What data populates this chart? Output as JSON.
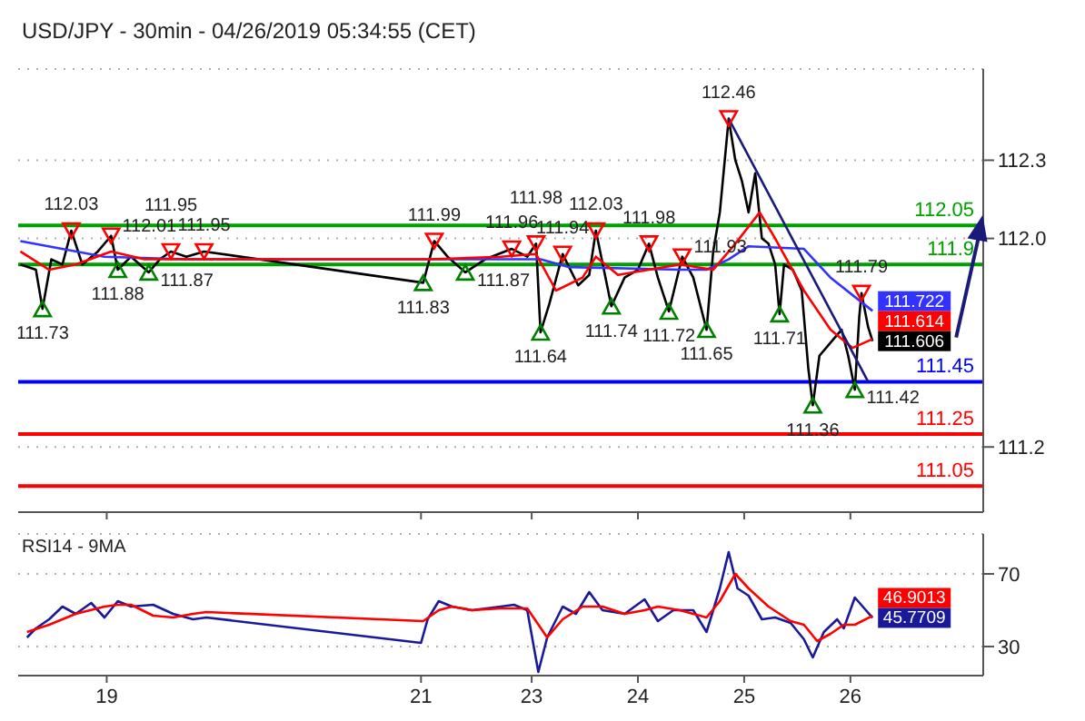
{
  "chart_data": [
    {
      "type": "line",
      "title": "USD/JPY - 30min - 04/26/2019 05:34:55 (CET)",
      "xlim": [
        "2019-04-18T04:00",
        "2019-04-27T06:00"
      ],
      "xticks": [
        "2019-04-19",
        "2019-04-21T23:00",
        "2019-04-23",
        "2019-04-24",
        "2019-04-25",
        "2019-04-26"
      ],
      "ylim": [
        110.95,
        112.65
      ],
      "yticks": [
        111.2,
        {
          "value": 112,
          "label": "112.0"
        },
        112.3
      ],
      "tick_labels": "y",
      "grid": "y",
      "marker": "none",
      "line_style": "solid",
      "ref_lines": [
        {
          "axis": "y",
          "value": 112.05,
          "label": "112.05",
          "color": "#00a000"
        },
        {
          "axis": "y",
          "value": 111.9,
          "label": "111.9",
          "color": "#00a000"
        },
        {
          "axis": "y",
          "value": 111.45,
          "label": "111.45",
          "color": "#0000ff"
        },
        {
          "axis": "y",
          "value": 111.25,
          "label": "111.25",
          "color": "#ff0000"
        },
        {
          "axis": "y",
          "value": 111.05,
          "label": "111.05",
          "color": "#ff0000"
        }
      ],
      "series": [
        {
          "color": "#000000",
          "x": [
            "2019-04-18T04:30",
            "2019-04-18T08:00",
            "2019-04-18T09:30",
            "2019-04-18T11:30",
            "2019-04-18T14:00",
            "2019-04-18T16:00",
            "2019-04-18T18:30",
            "2019-04-18T22:00",
            "2019-04-19T01:00",
            "2019-04-19T02:30",
            "2019-04-19T05:30",
            "2019-04-19T09:30",
            "2019-04-19T12:00",
            "2019-04-19T14:30",
            "2019-04-19T18:00",
            "2019-04-19T22:00",
            "2019-04-21T23:30",
            "2019-04-22T02:00",
            "2019-04-22T05:00",
            "2019-04-22T09:00",
            "2019-04-22T13:30",
            "2019-04-22T19:30",
            "2019-04-22T23:00",
            "2019-04-23T01:00",
            "2019-04-23T02:00",
            "2019-04-23T04:00",
            "2019-04-23T07:00",
            "2019-04-23T10:30",
            "2019-04-23T13:00",
            "2019-04-23T14:30",
            "2019-04-23T18:00",
            "2019-04-23T21:00",
            "2019-04-24T00:00",
            "2019-04-24T02:30",
            "2019-04-24T04:30",
            "2019-04-24T07:00",
            "2019-04-24T10:00",
            "2019-04-24T12:30",
            "2019-04-24T15:30",
            "2019-04-24T17:00",
            "2019-04-24T18:30",
            "2019-04-24T20:30",
            "2019-04-24T22:00",
            "2019-04-24T23:30",
            "2019-04-25T01:00",
            "2019-04-25T02:30",
            "2019-04-25T04:00",
            "2019-04-25T05:30",
            "2019-04-25T07:00",
            "2019-04-25T08:00",
            "2019-04-25T09:00",
            "2019-04-25T11:00",
            "2019-04-25T13:00",
            "2019-04-25T14:30",
            "2019-04-25T15:30",
            "2019-04-25T17:00",
            "2019-04-25T19:30",
            "2019-04-25T22:00",
            "2019-04-25T23:30",
            "2019-04-26T01:00",
            "2019-04-26T02:00",
            "2019-04-26T02:30",
            "2019-04-26T04:00",
            "2019-04-26T05:00"
          ],
          "values": [
            111.9,
            111.88,
            111.73,
            111.92,
            111.9,
            112.03,
            111.9,
            111.95,
            112.01,
            111.88,
            111.93,
            111.87,
            111.92,
            111.95,
            111.93,
            111.95,
            111.83,
            111.99,
            111.93,
            111.87,
            111.92,
            111.96,
            111.93,
            111.98,
            111.64,
            111.75,
            111.94,
            111.82,
            111.86,
            112.03,
            111.74,
            111.85,
            111.88,
            111.98,
            111.85,
            111.72,
            111.93,
            111.85,
            111.65,
            111.95,
            112.1,
            112.46,
            112.3,
            112.22,
            112.1,
            112.25,
            112.0,
            111.98,
            111.9,
            111.71,
            111.9,
            111.88,
            111.8,
            111.5,
            111.36,
            111.55,
            111.6,
            111.65,
            111.55,
            111.42,
            111.7,
            111.79,
            111.66,
            111.606
          ],
          "value_labels": [
            null,
            null,
            null,
            null,
            null,
            null,
            null,
            null,
            null,
            null,
            null,
            null,
            null,
            null,
            null,
            null,
            null,
            null,
            null,
            null,
            null,
            null,
            null,
            null,
            null,
            null,
            null,
            null,
            null,
            null,
            null,
            null,
            null,
            null,
            null,
            null,
            null,
            null,
            null,
            null,
            null,
            null,
            null,
            null,
            null,
            null,
            null,
            null,
            null,
            null,
            null,
            null,
            null,
            null,
            null,
            null,
            null,
            null,
            null,
            null,
            null,
            null,
            null,
            "111.606"
          ]
        },
        {
          "color": "#3333ff",
          "x": [
            "2019-04-18T04:30",
            "2019-04-18T23:30",
            "2019-04-19T18:00",
            "2019-04-23T02:00",
            "2019-04-23T08:30",
            "2019-04-24T09:30",
            "2019-04-24T15:30",
            "2019-04-24T20:30",
            "2019-04-25T01:00",
            "2019-04-25T13:30",
            "2019-04-25T19:30",
            "2019-04-26T05:00"
          ],
          "values": [
            111.99,
            111.93,
            111.92,
            111.92,
            111.89,
            111.88,
            111.88,
            111.92,
            111.97,
            111.96,
            111.85,
            111.722
          ],
          "value_labels": [
            null,
            null,
            null,
            null,
            null,
            null,
            null,
            null,
            null,
            null,
            null,
            "111.722"
          ]
        },
        {
          "color": "#ff0000",
          "x": [
            "2019-04-18T04:30",
            "2019-04-18T11:00",
            "2019-04-18T17:00",
            "2019-04-19T01:00",
            "2019-04-19T08:30",
            "2019-04-22T01:00",
            "2019-04-22T17:00",
            "2019-04-23T01:00",
            "2019-04-23T05:30",
            "2019-04-23T11:30",
            "2019-04-23T14:30",
            "2019-04-23T19:30",
            "2019-04-24T09:30",
            "2019-04-24T17:00",
            "2019-04-24T22:00",
            "2019-04-25T03:30",
            "2019-04-25T07:00",
            "2019-04-25T13:30",
            "2019-04-25T19:30",
            "2019-04-26T00:30",
            "2019-04-26T05:00"
          ],
          "values": [
            111.95,
            111.88,
            111.9,
            111.95,
            111.92,
            111.92,
            111.93,
            111.94,
            111.8,
            111.85,
            111.93,
            111.86,
            111.9,
            111.88,
            111.98,
            112.1,
            112.0,
            111.8,
            111.65,
            111.58,
            111.614
          ],
          "value_labels": [
            null,
            null,
            null,
            null,
            null,
            null,
            null,
            null,
            null,
            null,
            null,
            null,
            null,
            null,
            null,
            null,
            null,
            null,
            null,
            null,
            "111.614"
          ]
        },
        {
          "color": "#1a1a7a",
          "x": [
            "2019-04-24T20:30",
            "2019-04-26T04:00"
          ],
          "values": [
            112.46,
            111.45
          ]
        },
        {
          "type": "scatter",
          "marker": "triangle",
          "color": "#ff0000",
          "x": [
            "2019-04-18T16:00",
            "2019-04-19T01:00",
            "2019-04-19T14:30",
            "2019-04-19T22:00",
            "2019-04-22T02:00",
            "2019-04-22T19:30",
            "2019-04-23T01:00",
            "2019-04-23T07:00",
            "2019-04-23T14:30",
            "2019-04-24T02:30",
            "2019-04-24T10:00",
            "2019-04-24T20:30",
            "2019-04-26T02:30"
          ],
          "values": [
            112.03,
            112.01,
            111.95,
            111.95,
            111.99,
            111.96,
            111.98,
            111.94,
            112.03,
            111.98,
            111.93,
            112.46,
            111.79
          ],
          "value_labels": [
            "112.03",
            "112.01",
            "111.95",
            "111.95",
            "111.99",
            "111.96",
            "111.98",
            "111.94",
            "112.03",
            "111.98",
            "111.93",
            "112.46",
            "111.79"
          ]
        },
        {
          "type": "scatter",
          "marker": "triangle",
          "color": "#008000",
          "x": [
            "2019-04-18T09:30",
            "2019-04-19T02:30",
            "2019-04-19T09:30",
            "2019-04-21T23:30",
            "2019-04-22T09:00",
            "2019-04-23T02:00",
            "2019-04-23T18:00",
            "2019-04-24T07:00",
            "2019-04-24T15:30",
            "2019-04-25T08:00",
            "2019-04-25T15:30",
            "2019-04-26T01:00"
          ],
          "values": [
            111.73,
            111.88,
            111.87,
            111.83,
            111.87,
            111.64,
            111.74,
            111.72,
            111.65,
            111.71,
            111.36,
            111.42
          ],
          "value_labels": [
            "111.73",
            "111.88",
            "111.87",
            "111.83",
            "111.87",
            "111.64",
            "111.74",
            "111.72",
            "111.65",
            "111.71",
            "111.36",
            "111.42"
          ]
        }
      ]
    },
    {
      "type": "line",
      "title": "RSI14 - 9MA",
      "xlim": [
        "2019-04-18T04:00",
        "2019-04-27T06:00"
      ],
      "xticks": [
        {
          "value": "2019-04-19",
          "label": "19"
        },
        {
          "value": "2019-04-21T23:00",
          "label": "21"
        },
        {
          "value": "2019-04-23",
          "label": "23"
        },
        {
          "value": "2019-04-24",
          "label": "24"
        },
        {
          "value": "2019-04-25",
          "label": "25"
        },
        {
          "value": "2019-04-26",
          "label": "26"
        }
      ],
      "ylim": [
        14,
        92
      ],
      "yticks": [
        30,
        70
      ],
      "grid": "y",
      "marker": "none",
      "line_style": "solid",
      "series": [
        {
          "color": "#1a1a99",
          "x": [
            "2019-04-18T06:00",
            "2019-04-18T08:00",
            "2019-04-18T11:00",
            "2019-04-18T14:00",
            "2019-04-18T17:00",
            "2019-04-18T20:30",
            "2019-04-18T23:30",
            "2019-04-19T02:30",
            "2019-04-19T05:30",
            "2019-04-19T10:30",
            "2019-04-19T15:00",
            "2019-04-19T19:30",
            "2019-04-19T22:30",
            "2019-04-21T23:00",
            "2019-04-22T00:30",
            "2019-04-22T03:00",
            "2019-04-22T06:00",
            "2019-04-22T10:30",
            "2019-04-22T17:00",
            "2019-04-22T20:00",
            "2019-04-22T23:00",
            "2019-04-23T01:30",
            "2019-04-23T03:30",
            "2019-04-23T07:00",
            "2019-04-23T10:00",
            "2019-04-23T13:00",
            "2019-04-23T16:00",
            "2019-04-23T21:00",
            "2019-04-24T01:30",
            "2019-04-24T04:30",
            "2019-04-24T08:00",
            "2019-04-24T12:30",
            "2019-04-24T15:30",
            "2019-04-24T18:30",
            "2019-04-24T20:30",
            "2019-04-24T22:30",
            "2019-04-25T01:00",
            "2019-04-25T04:00",
            "2019-04-25T07:00",
            "2019-04-25T10:30",
            "2019-04-25T13:30",
            "2019-04-25T15:30",
            "2019-04-25T18:00",
            "2019-04-25T21:00",
            "2019-04-25T22:30",
            "2019-04-26T01:00",
            "2019-04-26T03:30",
            "2019-04-26T05:00"
          ],
          "values": [
            35,
            40,
            45,
            52,
            48,
            54,
            46,
            55,
            52,
            53,
            48,
            45,
            46,
            32,
            45,
            55,
            52,
            50,
            52,
            53,
            50,
            16,
            35,
            52,
            48,
            60,
            50,
            48,
            56,
            44,
            50,
            50,
            38,
            62,
            82,
            62,
            58,
            45,
            46,
            43,
            34,
            24,
            38,
            45,
            40,
            57,
            50,
            45.7709
          ],
          "value_labels": [
            null,
            null,
            null,
            null,
            null,
            null,
            null,
            null,
            null,
            null,
            null,
            null,
            null,
            null,
            null,
            null,
            null,
            null,
            null,
            null,
            null,
            null,
            null,
            null,
            null,
            null,
            null,
            null,
            null,
            null,
            null,
            null,
            null,
            null,
            null,
            null,
            null,
            null,
            null,
            null,
            null,
            null,
            null,
            null,
            null,
            null,
            null,
            "45.7709"
          ]
        },
        {
          "color": "#ff0000",
          "x": [
            "2019-04-18T06:00",
            "2019-04-18T11:00",
            "2019-04-18T17:00",
            "2019-04-18T23:30",
            "2019-04-19T02:30",
            "2019-04-19T05:30",
            "2019-04-19T10:30",
            "2019-04-19T15:00",
            "2019-04-19T19:30",
            "2019-04-19T22:30",
            "2019-04-21T23:30",
            "2019-04-22T03:00",
            "2019-04-22T06:00",
            "2019-04-22T10:30",
            "2019-04-22T17:00",
            "2019-04-22T23:00",
            "2019-04-23T03:30",
            "2019-04-23T07:00",
            "2019-04-23T11:30",
            "2019-04-23T16:00",
            "2019-04-23T21:00",
            "2019-04-24T01:30",
            "2019-04-24T04:30",
            "2019-04-24T09:30",
            "2019-04-24T15:30",
            "2019-04-24T18:30",
            "2019-04-24T22:00",
            "2019-04-25T01:00",
            "2019-04-25T05:30",
            "2019-04-25T10:30",
            "2019-04-25T13:30",
            "2019-04-25T16:30",
            "2019-04-25T19:30",
            "2019-04-25T22:30",
            "2019-04-26T01:00",
            "2019-04-26T05:00"
          ],
          "values": [
            38,
            42,
            48,
            52,
            53,
            53,
            47,
            46,
            48,
            49,
            44,
            50,
            52,
            50,
            51,
            51,
            35,
            45,
            52,
            52,
            48,
            50,
            52,
            50,
            46,
            55,
            70,
            62,
            52,
            44,
            42,
            33,
            37,
            42,
            42,
            46.9013
          ],
          "value_labels": [
            null,
            null,
            null,
            null,
            null,
            null,
            null,
            null,
            null,
            null,
            null,
            null,
            null,
            null,
            null,
            null,
            null,
            null,
            null,
            null,
            null,
            null,
            null,
            null,
            null,
            null,
            null,
            null,
            null,
            null,
            null,
            null,
            null,
            null,
            null,
            "46.9013"
          ]
        }
      ]
    }
  ]
}
